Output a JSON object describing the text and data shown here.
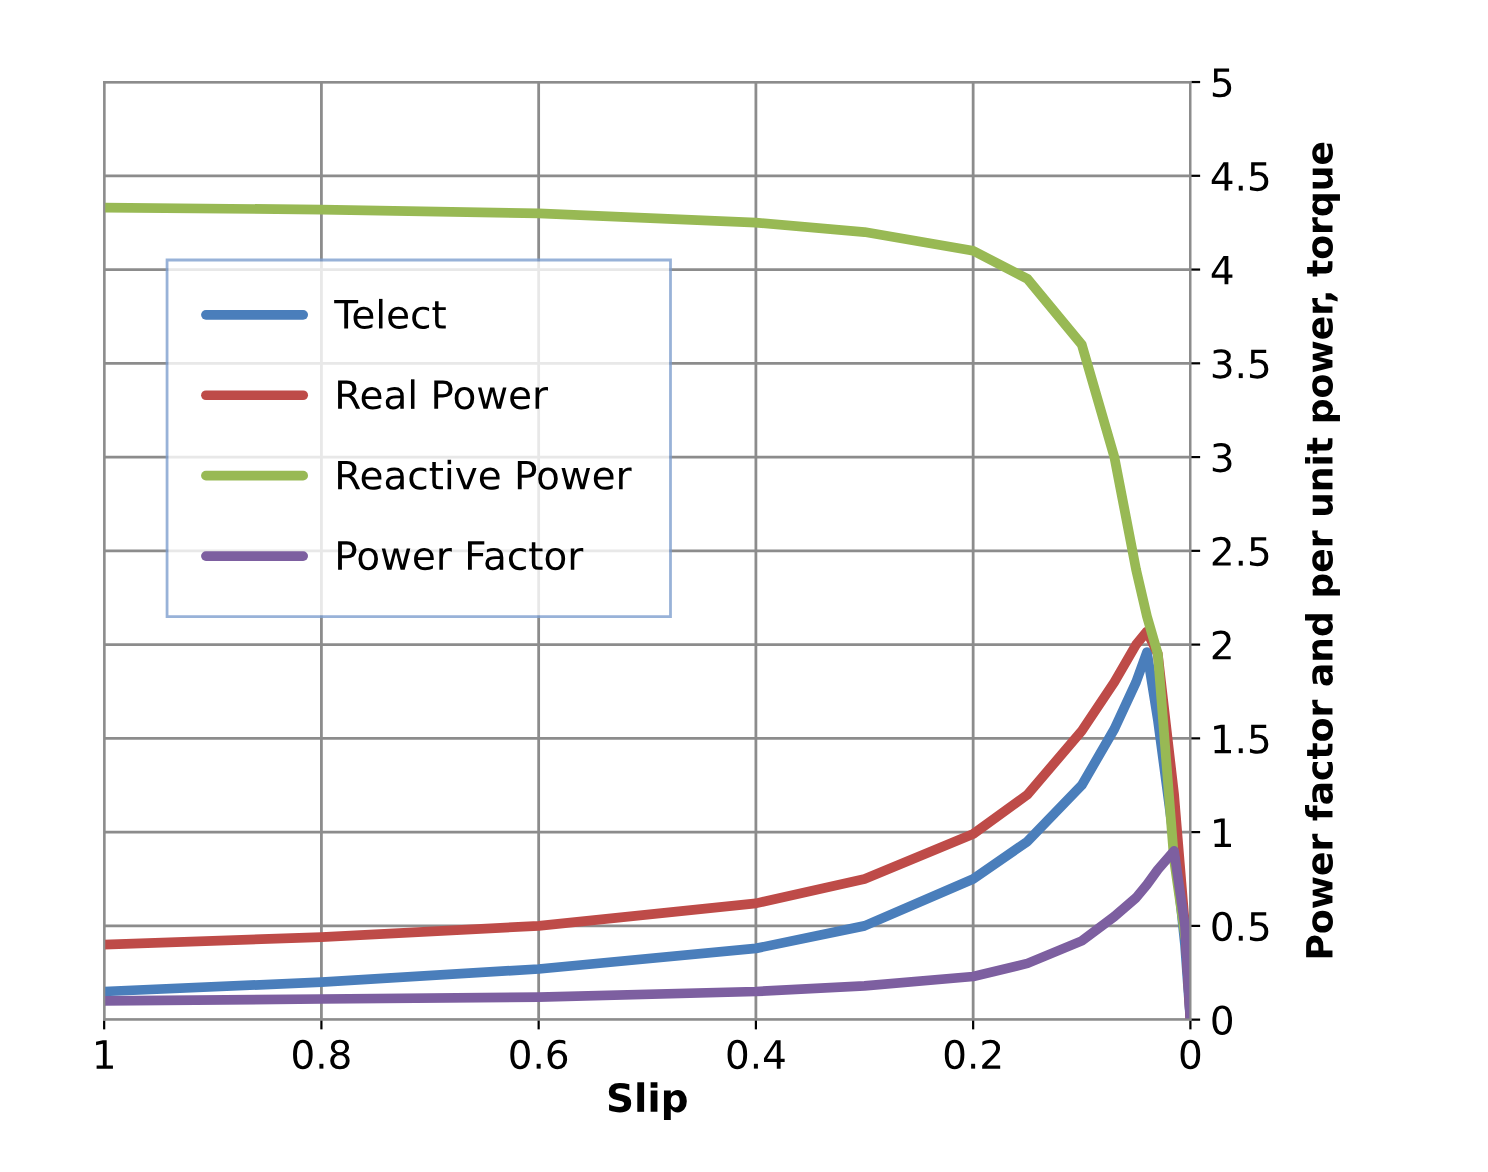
{
  "chart_data": {
    "type": "line",
    "xlabel": "Slip",
    "ylabel": "Power factor and per unit power, torque",
    "x": [
      1,
      0.8,
      0.6,
      0.4,
      0.3,
      0.2,
      0.15,
      0.1,
      0.07,
      0.05,
      0.04,
      0.03,
      0.015,
      0.005,
      0
    ],
    "series": [
      {
        "name": "Telect",
        "color": "#4a7ebb",
        "values": [
          0.15,
          0.2,
          0.27,
          0.38,
          0.5,
          0.75,
          0.95,
          1.25,
          1.55,
          1.8,
          1.96,
          1.6,
          0.95,
          0.4,
          0
        ]
      },
      {
        "name": "Real Power",
        "color": "#be4b48",
        "values": [
          0.4,
          0.44,
          0.5,
          0.62,
          0.75,
          0.99,
          1.2,
          1.54,
          1.8,
          2.0,
          2.07,
          1.95,
          1.2,
          0.5,
          0
        ]
      },
      {
        "name": "Reactive Power",
        "color": "#98b954",
        "values": [
          4.33,
          4.32,
          4.3,
          4.25,
          4.2,
          4.1,
          3.95,
          3.6,
          3.0,
          2.4,
          2.15,
          1.95,
          0.85,
          0.45,
          0.3
        ]
      },
      {
        "name": "Power Factor",
        "color": "#7d5fa0",
        "values": [
          0.1,
          0.11,
          0.12,
          0.15,
          0.18,
          0.23,
          0.3,
          0.42,
          0.55,
          0.65,
          0.72,
          0.8,
          0.9,
          0.5,
          0
        ]
      }
    ],
    "xlim": [
      1,
      0
    ],
    "ylim": [
      0,
      5
    ],
    "xticks": [
      1,
      0.8,
      0.6,
      0.4,
      0.2,
      0
    ],
    "yticks": [
      0,
      0.5,
      1,
      1.5,
      2,
      2.5,
      3,
      3.5,
      4,
      4.5,
      5
    ],
    "grid": true,
    "legend": "left",
    "marker": "none",
    "line_style": "solid"
  }
}
